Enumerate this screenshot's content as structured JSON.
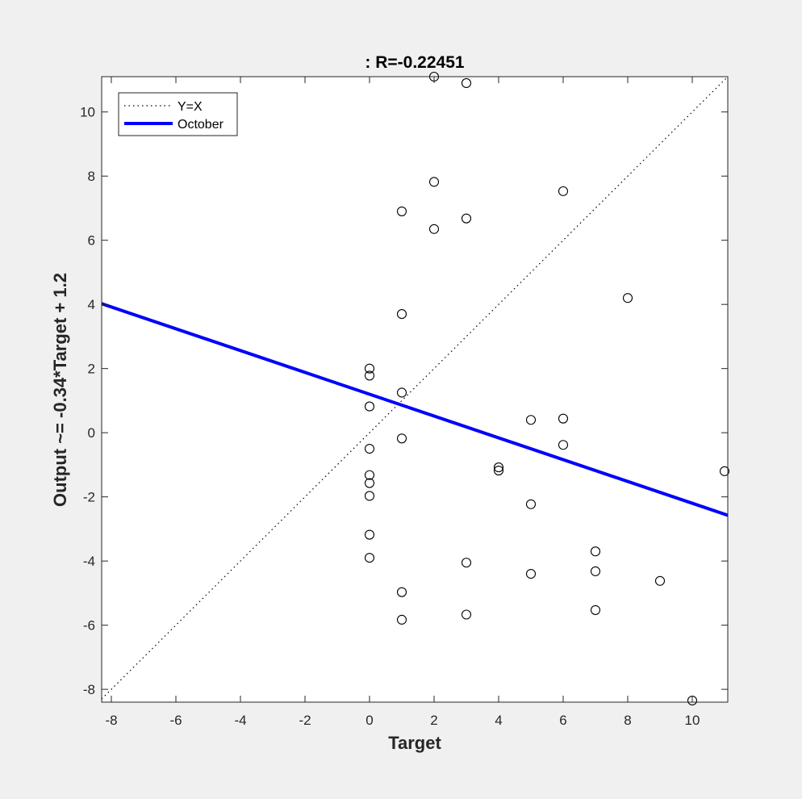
{
  "chart_data": {
    "type": "scatter",
    "title": ": R=-0.22451",
    "xlabel": "Target",
    "ylabel": "Output ~= -0.34*Target + 1.2",
    "xlim": [
      -8.3,
      11.1
    ],
    "ylim": [
      -8.4,
      11.1
    ],
    "xticks": [
      -8,
      -6,
      -4,
      -2,
      0,
      2,
      4,
      6,
      8,
      10
    ],
    "yticks": [
      -8,
      -6,
      -4,
      -2,
      0,
      2,
      4,
      6,
      8,
      10
    ],
    "grid": false,
    "legend_position": "top-left",
    "legend": [
      "Y=X",
      "October"
    ],
    "points": [
      {
        "x": 0,
        "y": 2.0
      },
      {
        "x": 0,
        "y": 1.78
      },
      {
        "x": 0,
        "y": 0.82
      },
      {
        "x": 0,
        "y": -0.5
      },
      {
        "x": 0,
        "y": -1.32
      },
      {
        "x": 0,
        "y": -1.57
      },
      {
        "x": 0,
        "y": -1.97
      },
      {
        "x": 0,
        "y": -3.18
      },
      {
        "x": 0,
        "y": -3.9
      },
      {
        "x": 1,
        "y": 6.9
      },
      {
        "x": 1,
        "y": 3.7
      },
      {
        "x": 1,
        "y": 1.25
      },
      {
        "x": 1,
        "y": -0.18
      },
      {
        "x": 1,
        "y": -4.97
      },
      {
        "x": 1,
        "y": -5.83
      },
      {
        "x": 2,
        "y": 11.1
      },
      {
        "x": 2,
        "y": 7.82
      },
      {
        "x": 2,
        "y": 6.35
      },
      {
        "x": 3,
        "y": 10.9
      },
      {
        "x": 3,
        "y": 6.68
      },
      {
        "x": 3,
        "y": -4.05
      },
      {
        "x": 3,
        "y": -5.67
      },
      {
        "x": 4,
        "y": -1.08
      },
      {
        "x": 4,
        "y": -1.18
      },
      {
        "x": 5,
        "y": 0.4
      },
      {
        "x": 5,
        "y": -2.23
      },
      {
        "x": 5,
        "y": -4.4
      },
      {
        "x": 6,
        "y": 7.53
      },
      {
        "x": 6,
        "y": 0.44
      },
      {
        "x": 6,
        "y": -0.38
      },
      {
        "x": 7,
        "y": -3.7
      },
      {
        "x": 7,
        "y": -4.32
      },
      {
        "x": 7,
        "y": -5.53
      },
      {
        "x": 8,
        "y": 4.2
      },
      {
        "x": 9,
        "y": -4.62
      },
      {
        "x": 10,
        "y": -8.35
      },
      {
        "x": 11,
        "y": -1.2
      }
    ],
    "series": [
      {
        "name": "Y=X",
        "style": "dotted",
        "color": "#000000",
        "slope": 1,
        "intercept": 0
      },
      {
        "name": "October",
        "style": "solid",
        "color": "#0000ff",
        "slope": -0.34,
        "intercept": 1.2
      }
    ],
    "marker_color": "#000000",
    "marker": "circle-open"
  }
}
